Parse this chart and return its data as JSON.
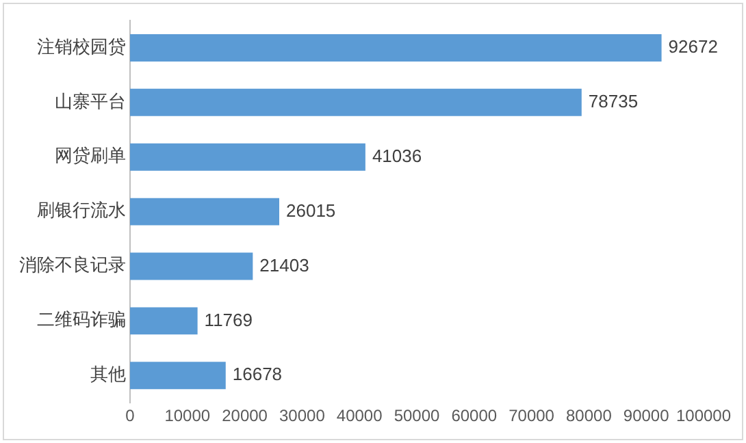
{
  "chart_data": {
    "type": "bar",
    "orientation": "horizontal",
    "categories": [
      "注销校园贷",
      "山寨平台",
      "网贷刷单",
      "刷银行流水",
      "消除不良记录",
      "二维码诈骗",
      "其他"
    ],
    "values": [
      92672,
      78735,
      41036,
      26015,
      21403,
      11769,
      16678
    ],
    "color": "#5b9bd5",
    "xlim": [
      0,
      100000
    ],
    "xticks": [
      0,
      10000,
      20000,
      30000,
      40000,
      50000,
      60000,
      70000,
      80000,
      90000,
      100000
    ],
    "grid": false,
    "legend": false,
    "data_labels": true
  }
}
